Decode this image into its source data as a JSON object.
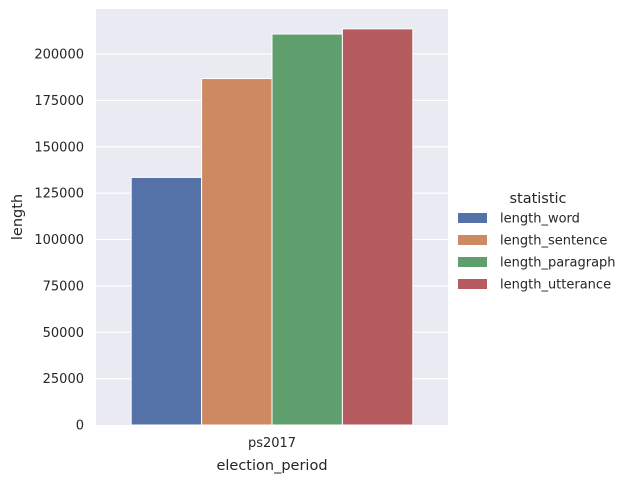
{
  "chart_data": {
    "type": "bar",
    "categories": [
      "ps2017"
    ],
    "series": [
      {
        "name": "length_word",
        "values": [
          133500
        ],
        "color": "#5471a8"
      },
      {
        "name": "length_sentence",
        "values": [
          186800
        ],
        "color": "#cd8a62"
      },
      {
        "name": "length_paragraph",
        "values": [
          210800
        ],
        "color": "#5f9f6e"
      },
      {
        "name": "length_utterance",
        "values": [
          213600
        ],
        "color": "#b65c61"
      }
    ],
    "xlabel": "election_period",
    "ylabel": "length",
    "ylim": [
      0,
      224300
    ],
    "yticks": [
      0,
      25000,
      50000,
      75000,
      100000,
      125000,
      150000,
      175000,
      200000
    ],
    "ytick_labels": [
      "0",
      "25000",
      "50000",
      "75000",
      "100000",
      "125000",
      "150000",
      "175000",
      "200000"
    ],
    "grid": true,
    "legend_title": "statistic",
    "legend_position": "right",
    "plot_background": "#eaeaf2"
  }
}
